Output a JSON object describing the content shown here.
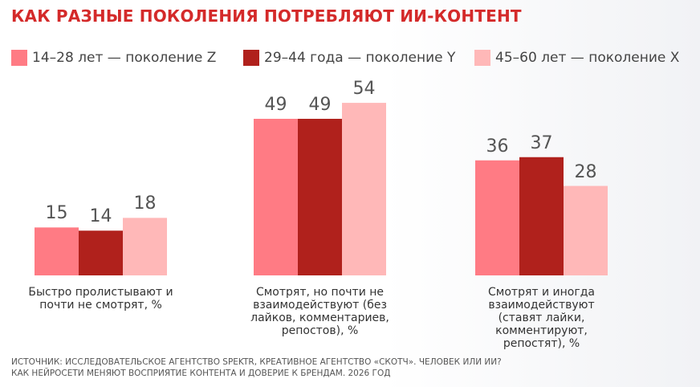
{
  "chart_data": {
    "type": "bar",
    "title": "КАК РАЗНЫЕ ПОКОЛЕНИЯ ПОТРЕБЛЯЮТ ИИ-КОНТЕНТ",
    "categories": [
      "Быстро пролистывают и почти не смотрят, %",
      "Смотрят, но почти не взаимодействуют (без лайков, комментариев, репостов), %",
      "Смотрят и иногда взаимодействуют (ставят лайки, комментируют, репостят), %"
    ],
    "series": [
      {
        "name": "14–28 лет — поколение Z",
        "color": "#ff7b84",
        "values": [
          15,
          49,
          36
        ]
      },
      {
        "name": "29–44 года — поколение Y",
        "color": "#b0211c",
        "values": [
          14,
          49,
          37
        ]
      },
      {
        "name": "45–60 лет — поколение X",
        "color": "#ffb8b8",
        "values": [
          18,
          54,
          28
        ]
      }
    ],
    "source": [
      "ИСТОЧНИК: ИССЛЕДОВАТЕЛЬСКОЕ АГЕНТСТВО SPEKTR, КРЕАТИВНОЕ АГЕНТСТВО «СКОТЧ». ЧЕЛОВЕК ИЛИ ИИ?",
      "КАК НЕЙРОСЕТИ МЕНЯЮТ ВОСПРИЯТИЕ КОНТЕНТА И ДОВЕРИЕ К БРЕНДАМ. 2026 ГОД"
    ]
  }
}
